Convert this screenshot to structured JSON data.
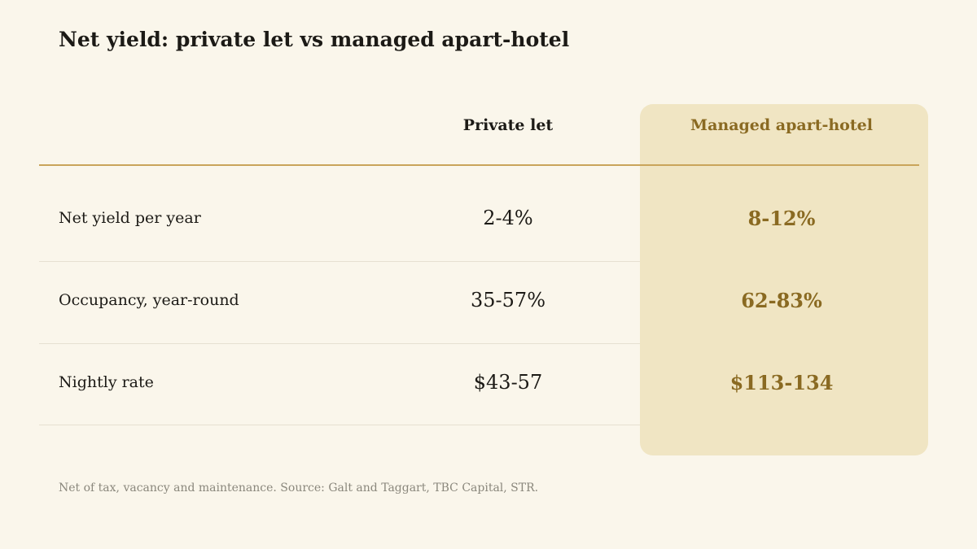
{
  "chart_data": {
    "type": "table",
    "title": "Net yield: private let vs managed apart-hotel",
    "columns": [
      "",
      "Private let",
      "Managed apart-hotel"
    ],
    "highlighted_column": "Managed apart-hotel",
    "rows": [
      {
        "label": "Net yield per year",
        "private_let": "2-4%",
        "managed": "8-12%"
      },
      {
        "label": "Occupancy, year-round",
        "private_let": "35-57%",
        "managed": "62-83%"
      },
      {
        "label": "Nightly rate",
        "private_let": "$43-57",
        "managed": "$113-134"
      }
    ],
    "footnote": "Net of tax, vacancy and maintenance. Source: Galt and Taggart, TBC Capital, STR.",
    "colors": {
      "background": "#faf6eb",
      "highlight_fill": "#f0e5c3",
      "accent": "#8a6a22",
      "rule": "#c9a45a"
    }
  }
}
